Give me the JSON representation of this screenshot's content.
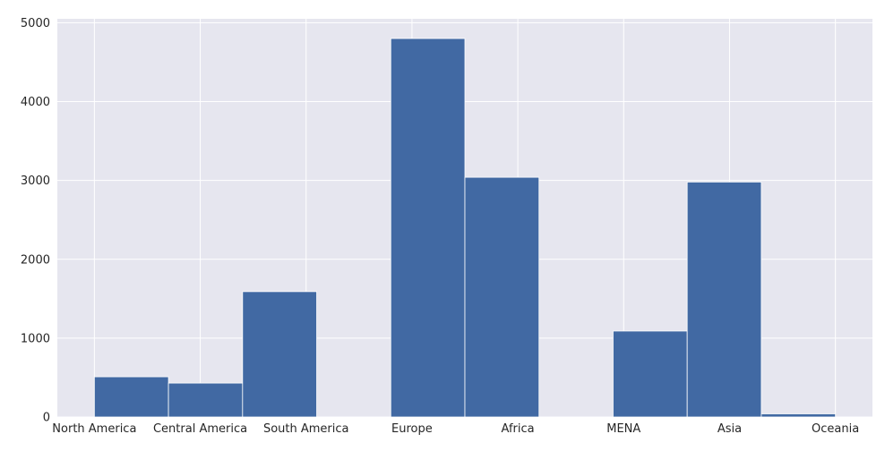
{
  "chart_data": {
    "type": "bar",
    "title": "",
    "xlabel": "",
    "ylabel": "",
    "x_tick_labels": [
      "North America",
      "Central America",
      "South America",
      "Europe",
      "Africa",
      "MENA",
      "Asia",
      "Oceania"
    ],
    "bins": [
      {
        "x0": 0.0,
        "x1": 0.7,
        "value": 510
      },
      {
        "x0": 0.7,
        "x1": 1.4,
        "value": 430
      },
      {
        "x0": 1.4,
        "x1": 2.1,
        "value": 1590
      },
      {
        "x0": 2.1,
        "x1": 2.8,
        "value": 0
      },
      {
        "x0": 2.8,
        "x1": 3.5,
        "value": 4800
      },
      {
        "x0": 3.5,
        "x1": 4.2,
        "value": 3040
      },
      {
        "x0": 4.2,
        "x1": 4.9,
        "value": 0
      },
      {
        "x0": 4.9,
        "x1": 5.6,
        "value": 1090
      },
      {
        "x0": 5.6,
        "x1": 6.3,
        "value": 2980
      },
      {
        "x0": 6.3,
        "x1": 7.0,
        "value": 40
      }
    ],
    "xlim": [
      -0.35,
      7.35
    ],
    "ylim": [
      0,
      5050
    ],
    "yticks": [
      0,
      1000,
      2000,
      3000,
      4000,
      5000
    ],
    "grid": true,
    "legend": "none",
    "colors": {
      "bar": "#4169a3",
      "plot_background": "#e6e6ef",
      "grid": "#ffffff",
      "tick_text": "#262626"
    }
  }
}
